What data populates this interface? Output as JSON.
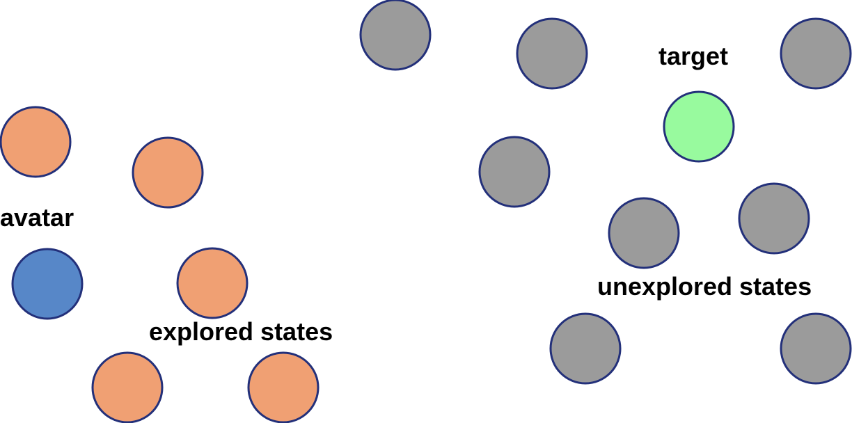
{
  "colors": {
    "stroke": "#23307a",
    "avatar": "#5787c8",
    "explored": "#f0a073",
    "unexplored": "#9b9b9b",
    "target": "#98fa9e"
  },
  "labels": {
    "avatar": "avatar",
    "explored": "explored states",
    "unexplored": "unexplored states",
    "target": "target"
  }
}
